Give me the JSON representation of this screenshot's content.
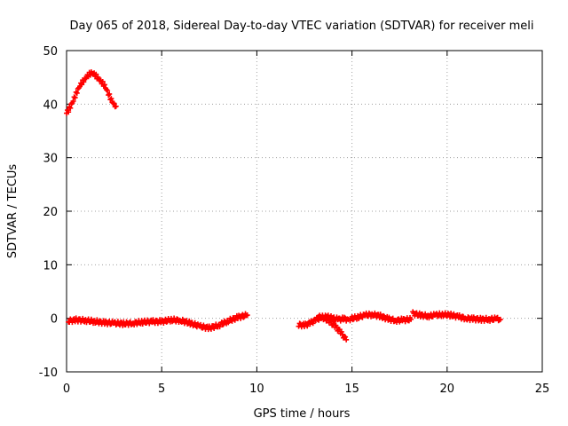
{
  "chart_data": {
    "type": "scatter",
    "title": "Day 065 of 2018, Sidereal Day-to-day VTEC variation (SDTVAR) for receiver meli",
    "xlabel": "GPS time / hours",
    "ylabel": "SDTVAR / TECUs",
    "xlim": [
      0,
      25
    ],
    "ylim": [
      -10,
      50
    ],
    "xticks": [
      0,
      5,
      10,
      15,
      20,
      25
    ],
    "yticks": [
      -10,
      0,
      10,
      20,
      30,
      40,
      50
    ],
    "grid": true,
    "legend": "none",
    "marker": "plus",
    "series": [
      {
        "name": "arc-early",
        "color": "#ff0000",
        "x": [
          0.0,
          0.1,
          0.2,
          0.3,
          0.4,
          0.5,
          0.6,
          0.7,
          0.8,
          0.9,
          1.0,
          1.1,
          1.2,
          1.3,
          1.4,
          1.5,
          1.6,
          1.7,
          1.8,
          1.9,
          2.0,
          2.1,
          2.2,
          2.3,
          2.4,
          2.5,
          2.6
        ],
        "y": [
          38.3,
          38.8,
          39.6,
          40.4,
          41.2,
          41.9,
          42.6,
          43.3,
          43.9,
          44.5,
          45.0,
          45.4,
          45.6,
          45.7,
          45.6,
          45.4,
          45.1,
          44.8,
          44.4,
          43.9,
          43.3,
          42.6,
          41.9,
          41.2,
          40.6,
          40.1,
          39.6
        ]
      },
      {
        "name": "segment-1",
        "color": "#ff0000",
        "x": [
          0.1,
          0.5,
          1.0,
          1.5,
          2.0,
          2.5,
          3.0,
          3.5,
          4.0,
          4.5,
          5.0,
          5.5,
          6.0,
          6.5,
          7.0,
          7.5,
          8.0,
          8.5,
          9.0,
          9.5
        ],
        "y": [
          -0.5,
          -0.3,
          -0.4,
          -0.6,
          -0.8,
          -0.9,
          -1.0,
          -0.9,
          -0.7,
          -0.6,
          -0.6,
          -0.3,
          -0.4,
          -0.9,
          -1.5,
          -1.8,
          -1.3,
          -0.5,
          0.2,
          0.6
        ]
      },
      {
        "name": "segment-2",
        "color": "#ff0000",
        "x": [
          12.2,
          12.5,
          12.8,
          13.1,
          13.4,
          13.7,
          14.0,
          14.3,
          14.6,
          14.8
        ],
        "y": [
          -1.2,
          -1.3,
          -0.9,
          -0.3,
          0.2,
          0.3,
          0.0,
          -0.2,
          -0.1,
          -0.2
        ]
      },
      {
        "name": "segment-3",
        "color": "#ff0000",
        "x": [
          13.2,
          13.5,
          13.8,
          14.1,
          14.4,
          14.7
        ],
        "y": [
          0.3,
          0.1,
          -0.5,
          -1.4,
          -2.6,
          -4.0
        ]
      },
      {
        "name": "segment-4",
        "color": "#ff0000",
        "x": [
          14.9,
          15.3,
          15.7,
          16.1,
          16.5,
          16.9,
          17.3,
          17.7,
          18.1
        ],
        "y": [
          -0.1,
          0.2,
          0.6,
          0.7,
          0.4,
          -0.1,
          -0.4,
          -0.3,
          -0.2
        ]
      },
      {
        "name": "segment-5",
        "color": "#ff0000",
        "x": [
          18.2,
          18.6,
          19.0,
          19.4,
          19.8,
          20.2,
          20.6,
          21.0,
          21.4,
          21.8,
          22.2,
          22.6,
          22.8
        ],
        "y": [
          0.9,
          0.6,
          0.4,
          0.6,
          0.7,
          0.6,
          0.3,
          0.0,
          -0.1,
          -0.2,
          -0.2,
          -0.1,
          -0.2
        ]
      }
    ]
  }
}
